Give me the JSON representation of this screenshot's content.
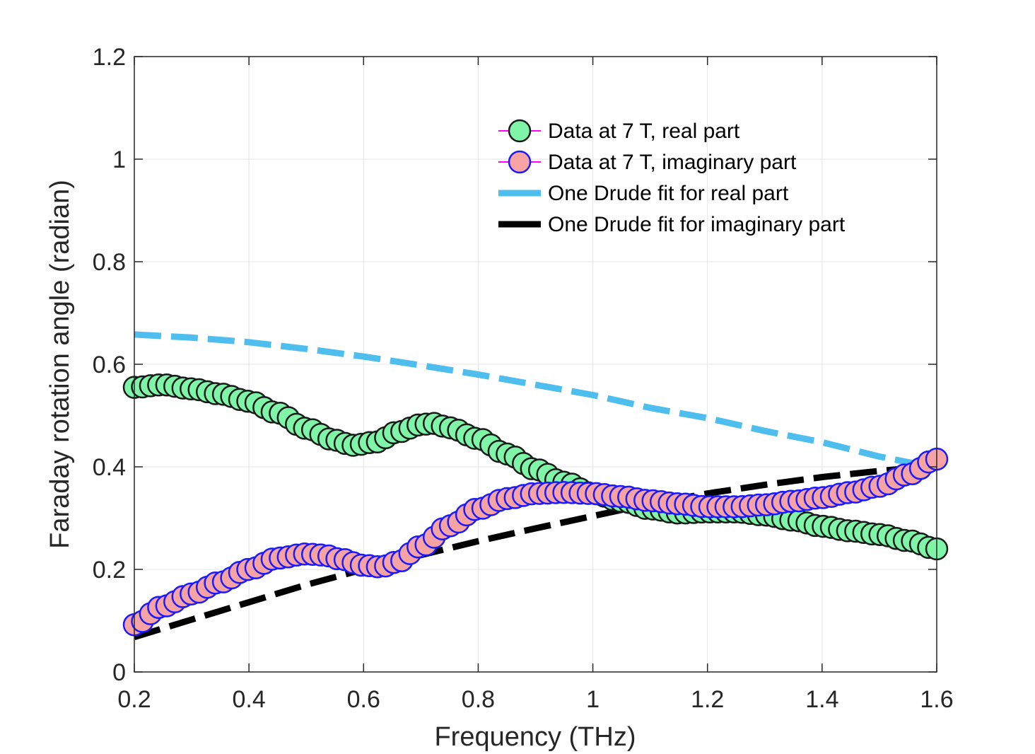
{
  "chart_data": {
    "type": "line",
    "title": "",
    "xlabel": "Frequency (THz)",
    "ylabel": "Faraday rotation angle (radian)",
    "xlim": [
      0.2,
      1.6
    ],
    "ylim": [
      0,
      1.2
    ],
    "grid": true,
    "legend_position": "top-right",
    "xticks": [
      {
        "value": 0.2,
        "label": "0.2"
      },
      {
        "value": 0.4,
        "label": "0.4"
      },
      {
        "value": 0.6,
        "label": "0.6"
      },
      {
        "value": 0.8,
        "label": "0.8"
      },
      {
        "value": 1.0,
        "label": "1"
      },
      {
        "value": 1.2,
        "label": "1.2"
      },
      {
        "value": 1.4,
        "label": "1.4"
      },
      {
        "value": 1.6,
        "label": "1.6"
      }
    ],
    "yticks": [
      {
        "value": 0,
        "label": "0"
      },
      {
        "value": 0.2,
        "label": "0.2"
      },
      {
        "value": 0.4,
        "label": "0.4"
      },
      {
        "value": 0.6,
        "label": "0.6"
      },
      {
        "value": 0.8,
        "label": "0.8"
      },
      {
        "value": 1.0,
        "label": "1"
      },
      {
        "value": 1.2,
        "label": "1.2"
      }
    ],
    "series": [
      {
        "name": "Data at 7 T, real part",
        "style": "markers",
        "color": "#1a1a1a",
        "fill": "#7ff5a8",
        "line_color": "#ff00ff",
        "x": [
          0.2,
          0.25,
          0.3,
          0.35,
          0.4,
          0.45,
          0.5,
          0.55,
          0.58,
          0.62,
          0.66,
          0.7,
          0.72,
          0.75,
          0.8,
          0.85,
          0.9,
          0.95,
          1.0,
          1.05,
          1.1,
          1.15,
          1.2,
          1.25,
          1.3,
          1.35,
          1.4,
          1.45,
          1.5,
          1.55,
          1.6
        ],
        "y": [
          0.555,
          0.56,
          0.552,
          0.542,
          0.528,
          0.505,
          0.475,
          0.452,
          0.442,
          0.448,
          0.468,
          0.482,
          0.485,
          0.476,
          0.455,
          0.425,
          0.395,
          0.37,
          0.348,
          0.333,
          0.318,
          0.31,
          0.312,
          0.312,
          0.306,
          0.296,
          0.284,
          0.275,
          0.268,
          0.256,
          0.24
        ]
      },
      {
        "name": "Data at 7 T, imaginary part",
        "style": "markers",
        "color": "#1a1aff",
        "fill": "#f7a3a3",
        "line_color": "#ff00ff",
        "x": [
          0.2,
          0.25,
          0.3,
          0.35,
          0.4,
          0.45,
          0.5,
          0.53,
          0.56,
          0.6,
          0.63,
          0.66,
          0.7,
          0.75,
          0.8,
          0.85,
          0.9,
          0.95,
          1.0,
          1.05,
          1.1,
          1.15,
          1.2,
          1.25,
          1.3,
          1.35,
          1.4,
          1.45,
          1.5,
          1.55,
          1.6
        ],
        "y": [
          0.092,
          0.128,
          0.152,
          0.175,
          0.2,
          0.222,
          0.23,
          0.228,
          0.22,
          0.208,
          0.205,
          0.215,
          0.245,
          0.285,
          0.318,
          0.338,
          0.348,
          0.35,
          0.348,
          0.342,
          0.334,
          0.328,
          0.322,
          0.322,
          0.326,
          0.333,
          0.34,
          0.35,
          0.362,
          0.385,
          0.415
        ]
      },
      {
        "name": "One Drude fit for real part",
        "style": "dashed",
        "color": "#4dbeee",
        "x": [
          0.2,
          0.3,
          0.4,
          0.5,
          0.6,
          0.7,
          0.8,
          0.9,
          1.0,
          1.1,
          1.2,
          1.3,
          1.4,
          1.5,
          1.6
        ],
        "y": [
          0.658,
          0.652,
          0.643,
          0.63,
          0.615,
          0.598,
          0.58,
          0.56,
          0.54,
          0.515,
          0.495,
          0.47,
          0.448,
          0.42,
          0.398
        ]
      },
      {
        "name": "One Drude fit for imaginary part",
        "style": "dashed",
        "color": "#000000",
        "x": [
          0.2,
          0.3,
          0.4,
          0.5,
          0.6,
          0.7,
          0.8,
          0.9,
          1.0,
          1.1,
          1.2,
          1.3,
          1.4,
          1.5,
          1.6
        ],
        "y": [
          0.068,
          0.102,
          0.136,
          0.17,
          0.2,
          0.228,
          0.255,
          0.28,
          0.304,
          0.328,
          0.348,
          0.365,
          0.38,
          0.392,
          0.402
        ]
      }
    ]
  }
}
